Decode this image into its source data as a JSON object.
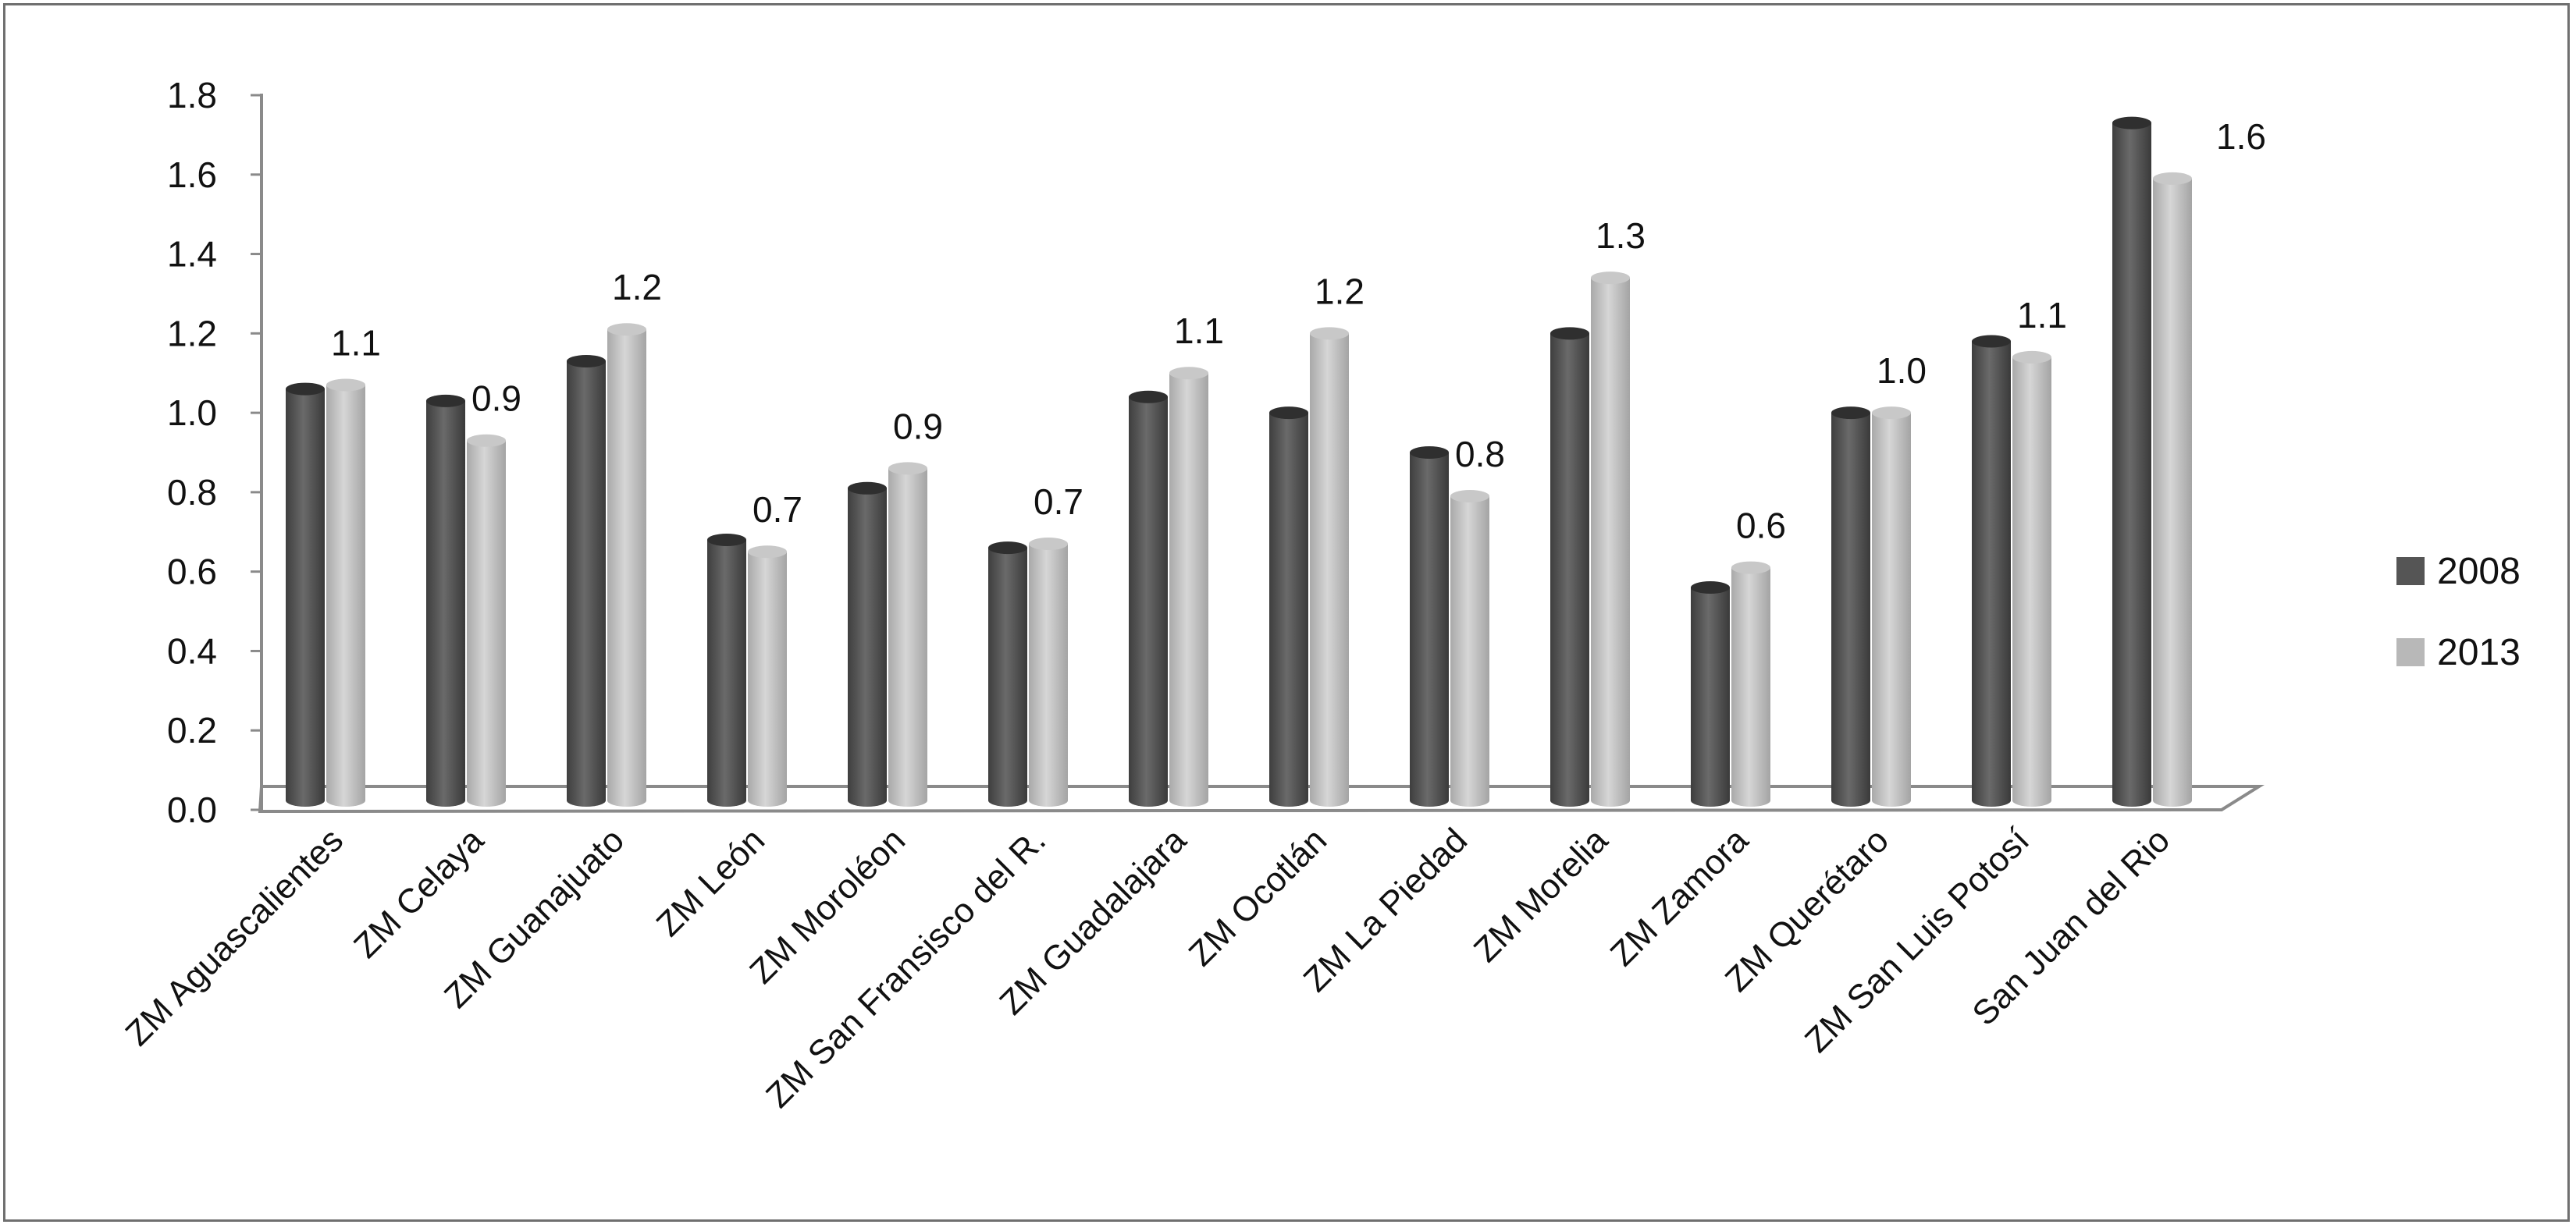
{
  "chart_data": {
    "type": "bar",
    "title": "",
    "xlabel": "",
    "ylabel": "",
    "ylim": [
      0,
      1.8
    ],
    "yticks": [
      "0.0",
      "0.2",
      "0.4",
      "0.6",
      "0.8",
      "1.0",
      "1.2",
      "1.4",
      "1.6",
      "1.8"
    ],
    "grid": false,
    "legend_position": "right",
    "categories": [
      "ZM Aguascalientes",
      "ZM Celaya",
      "ZM Guanajuato",
      "ZM León",
      "ZM Moroléon",
      "ZM San Fransisco del R.",
      "ZM Guadalajara",
      "ZM Ocotlán",
      "ZM La Piedad",
      "ZM Morelia",
      "ZM Zamora",
      "ZM Querétaro",
      "ZM San Luis Potosí",
      "San Juan del Rio"
    ],
    "series": [
      {
        "name": "2008",
        "color": "#555555",
        "values": [
          1.06,
          1.03,
          1.13,
          0.68,
          0.81,
          0.66,
          1.04,
          1.0,
          0.9,
          1.2,
          0.56,
          1.0,
          1.18,
          1.73
        ]
      },
      {
        "name": "2013",
        "color": "#b8b8b8",
        "values": [
          1.07,
          0.93,
          1.21,
          0.65,
          0.86,
          0.67,
          1.1,
          1.2,
          0.79,
          1.34,
          0.61,
          1.0,
          1.14,
          1.59
        ]
      }
    ],
    "data_labels": [
      "1.1",
      "0.9",
      "1.2",
      "0.7",
      "0.9",
      "0.7",
      "1.1",
      "1.2",
      "0.8",
      "1.3",
      "0.6",
      "1.0",
      "1.1",
      "1.6"
    ]
  }
}
